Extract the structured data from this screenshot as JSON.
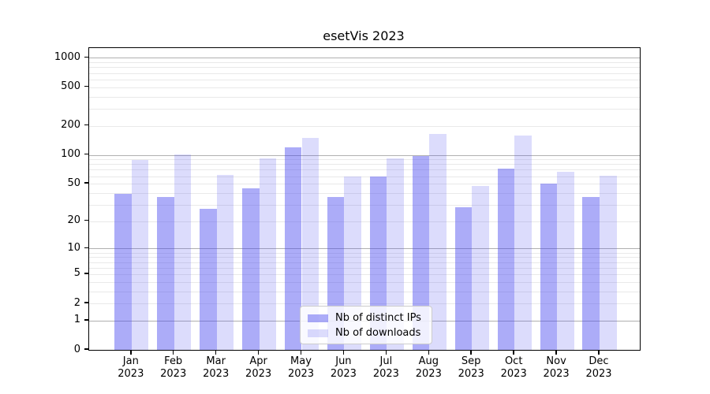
{
  "chart_data": {
    "type": "bar",
    "title": "esetVis 2023",
    "categories": [
      "Jan",
      "Feb",
      "Mar",
      "Apr",
      "May",
      "Jun",
      "Jul",
      "Aug",
      "Sep",
      "Oct",
      "Nov",
      "Dec"
    ],
    "category_year": "2023",
    "series": [
      {
        "name": "Nb of distinct IPs",
        "color": "rgba(70,70,240,0.45)",
        "values": [
          39,
          36,
          27,
          45,
          119,
          36,
          59,
          97,
          28,
          72,
          50,
          36
        ]
      },
      {
        "name": "Nb of downloads",
        "color": "rgba(70,70,240,0.19)",
        "values": [
          89,
          101,
          62,
          92,
          149,
          59,
          92,
          166,
          47,
          160,
          67,
          61
        ]
      }
    ],
    "xlabel": "",
    "ylabel": "",
    "y_axis": {
      "scale": "log10(value+1)",
      "labeled_ticks": [
        1000,
        500,
        200,
        100,
        50,
        20,
        10,
        5,
        2,
        1,
        0
      ],
      "major_gridlines": [
        1000,
        100,
        10,
        1
      ],
      "minor_gridlines": [
        900,
        800,
        700,
        600,
        500,
        400,
        300,
        200,
        90,
        80,
        70,
        60,
        50,
        40,
        30,
        20,
        9,
        8,
        7,
        6,
        5,
        4,
        3,
        2
      ],
      "ylim": [
        0,
        1300
      ]
    },
    "grid": true,
    "legend": {
      "position": "bottom-center",
      "entries": [
        "Nb of distinct IPs",
        "Nb of downloads"
      ]
    },
    "colors": {
      "bar_distinct_ips": "rgba(70,70,240,0.45)",
      "bar_downloads": "rgba(70,70,240,0.19)",
      "major_grid": "#b0b0b0",
      "minor_grid": "#e9e9e9",
      "axis_spine": "#000000",
      "legend_border": "#cccccc"
    }
  }
}
